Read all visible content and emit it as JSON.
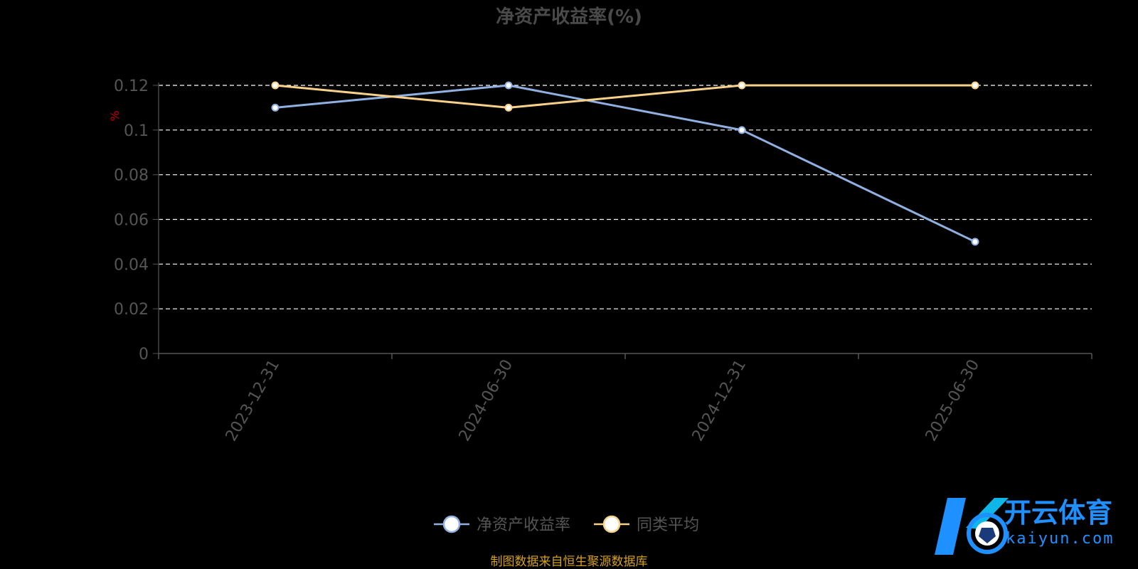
{
  "chart_data": {
    "type": "line",
    "title": "净资产收益率(%)",
    "ylabel": "%",
    "xlabel": "",
    "categories": [
      "2023-12-31",
      "2024-06-30",
      "2024-12-31",
      "2025-06-30"
    ],
    "series": [
      {
        "name": "净资产收益率",
        "values": [
          0.11,
          0.12,
          0.1,
          0.05
        ],
        "color": "#8fb0e0"
      },
      {
        "name": "同类平均",
        "values": [
          0.12,
          0.11,
          0.12,
          0.12
        ],
        "color": "#f7d08a"
      }
    ],
    "yticks": [
      0,
      0.02,
      0.04,
      0.06,
      0.08,
      0.1,
      0.12
    ],
    "ytick_labels": [
      "0",
      "0.02",
      "0.04",
      "0.06",
      "0.08",
      "0.1",
      "0.12"
    ],
    "ylim": [
      0,
      0.12
    ],
    "grid": true,
    "legend_position": "bottom-center"
  },
  "source_note": "制图数据来自恒生聚源数据库",
  "watermark": {
    "brand_cn": "开云体育",
    "brand_en": "kaiyun.com"
  },
  "colors": {
    "background": "#000000",
    "title": "#4a4a4a",
    "axis_text": "#555555",
    "ylabel": "#cc0000",
    "grid": "#ffffff",
    "source_note": "#d4a017",
    "logo_blue": "#1e90ff"
  }
}
